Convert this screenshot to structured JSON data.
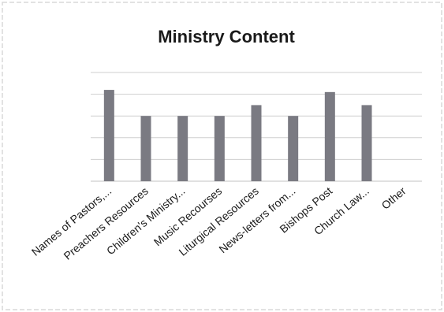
{
  "chart_data": {
    "type": "bar",
    "title": "Ministry Content",
    "categories": [
      "Names of Pastors,...",
      "Preachers Resources",
      "Children's Ministry...",
      "Music Recourses",
      "Liturgical Resources",
      "News-letters from...",
      "Bishops Post",
      "Church Law...",
      "Other"
    ],
    "values": [
      4.2,
      3.0,
      3.0,
      3.0,
      3.5,
      3.0,
      4.1,
      3.5,
      0
    ],
    "ylim": [
      0,
      5
    ],
    "grid": true,
    "bar_color": "#7a7a82",
    "grid_color": "#cfcfcf",
    "xlabel": "",
    "ylabel": ""
  }
}
